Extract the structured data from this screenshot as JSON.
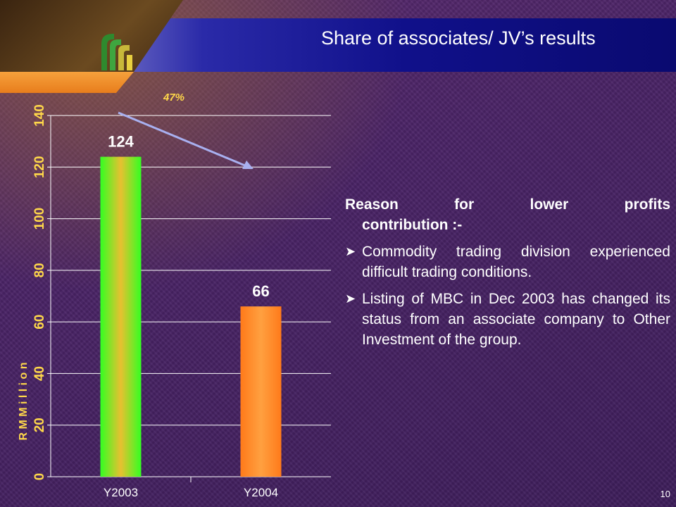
{
  "slide": {
    "title": "Share of associates/ JV’s results",
    "slide_number": "10",
    "change_label": "47%",
    "accent_color": "#ffd84a",
    "header_color": "#10108a",
    "tab_color": "#e87d1c"
  },
  "reason": {
    "heading_part1": "Reason for lower profits",
    "heading_part2": "contribution :-",
    "bullets": [
      "Commodity trading division experienced difficult trading conditions.",
      "Listing of MBC in Dec 2003 has changed its status from an associate company to Other Investment of the group."
    ],
    "bullet_icon": "arrow-bullet-icon"
  },
  "chart_data": {
    "type": "bar",
    "categories": [
      "Y2003",
      "Y2004"
    ],
    "values": [
      124,
      66
    ],
    "data_labels": [
      "124",
      "66"
    ],
    "title": "",
    "xlabel": "",
    "ylabel": "R M M i l l i o n",
    "ylim": [
      0,
      140
    ],
    "yticks": [
      0,
      20,
      40,
      60,
      80,
      100,
      120,
      140
    ],
    "bar_colors": [
      "#33ff22",
      "#ff7a1a"
    ],
    "grid": true,
    "annotation": "47%",
    "annotation_arrow_color": "#a8b0f0"
  }
}
